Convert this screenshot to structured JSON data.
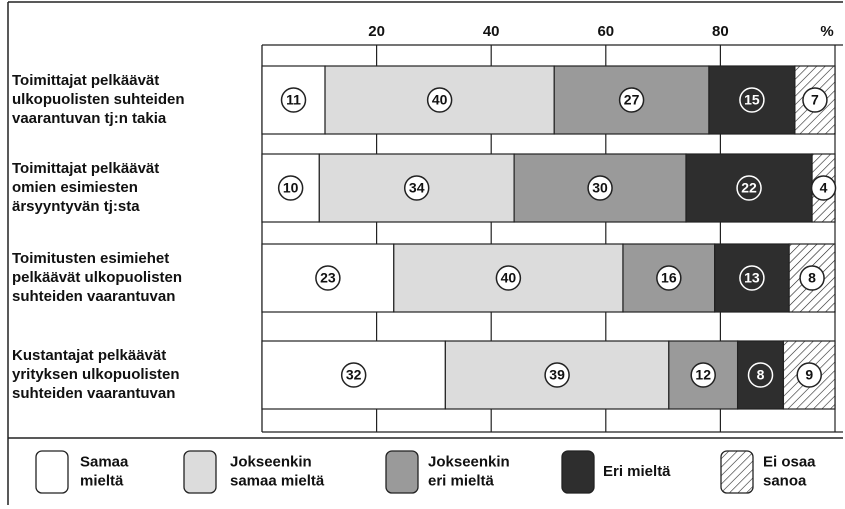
{
  "chart_data": {
    "type": "stacked-bar",
    "categories": [
      "Toimittajat pelkäävät\nulkopuolisten suhteiden\nvaarantuvan tj:n takia",
      "Toimittajat pelkäävät\nomien esimiesten\närsyyntyvän tj:sta",
      "Toimitusten esimiehet\npelkäävät ulkopuolisten\nsuhteiden vaarantuvan",
      "Kustantajat pelkäävät\nyrityksen ulkopuolisten\nsuhteiden vaarantuvan"
    ],
    "series": [
      {
        "name": "Samaa\nmieltä",
        "color": "#ffffff",
        "values": [
          11,
          10,
          23,
          32
        ]
      },
      {
        "name": "Jokseenkin\nsamaa mieltä",
        "color": "#dcdcdc",
        "values": [
          40,
          34,
          40,
          39
        ]
      },
      {
        "name": "Jokseenkin\neri mieltä",
        "color": "#9a9a9a",
        "values": [
          27,
          30,
          16,
          12
        ]
      },
      {
        "name": "Eri mieltä",
        "color": "#2e2e2e",
        "values": [
          15,
          22,
          13,
          8
        ]
      },
      {
        "name": "Ei osaa\nsanoa",
        "color": "#ffffff",
        "hatch": true,
        "values": [
          7,
          4,
          8,
          9
        ]
      }
    ],
    "xlim": [
      0,
      100
    ],
    "xticks": [
      20,
      40,
      60,
      80,
      {
        "value": 100,
        "label": "%"
      }
    ],
    "grid": true
  }
}
